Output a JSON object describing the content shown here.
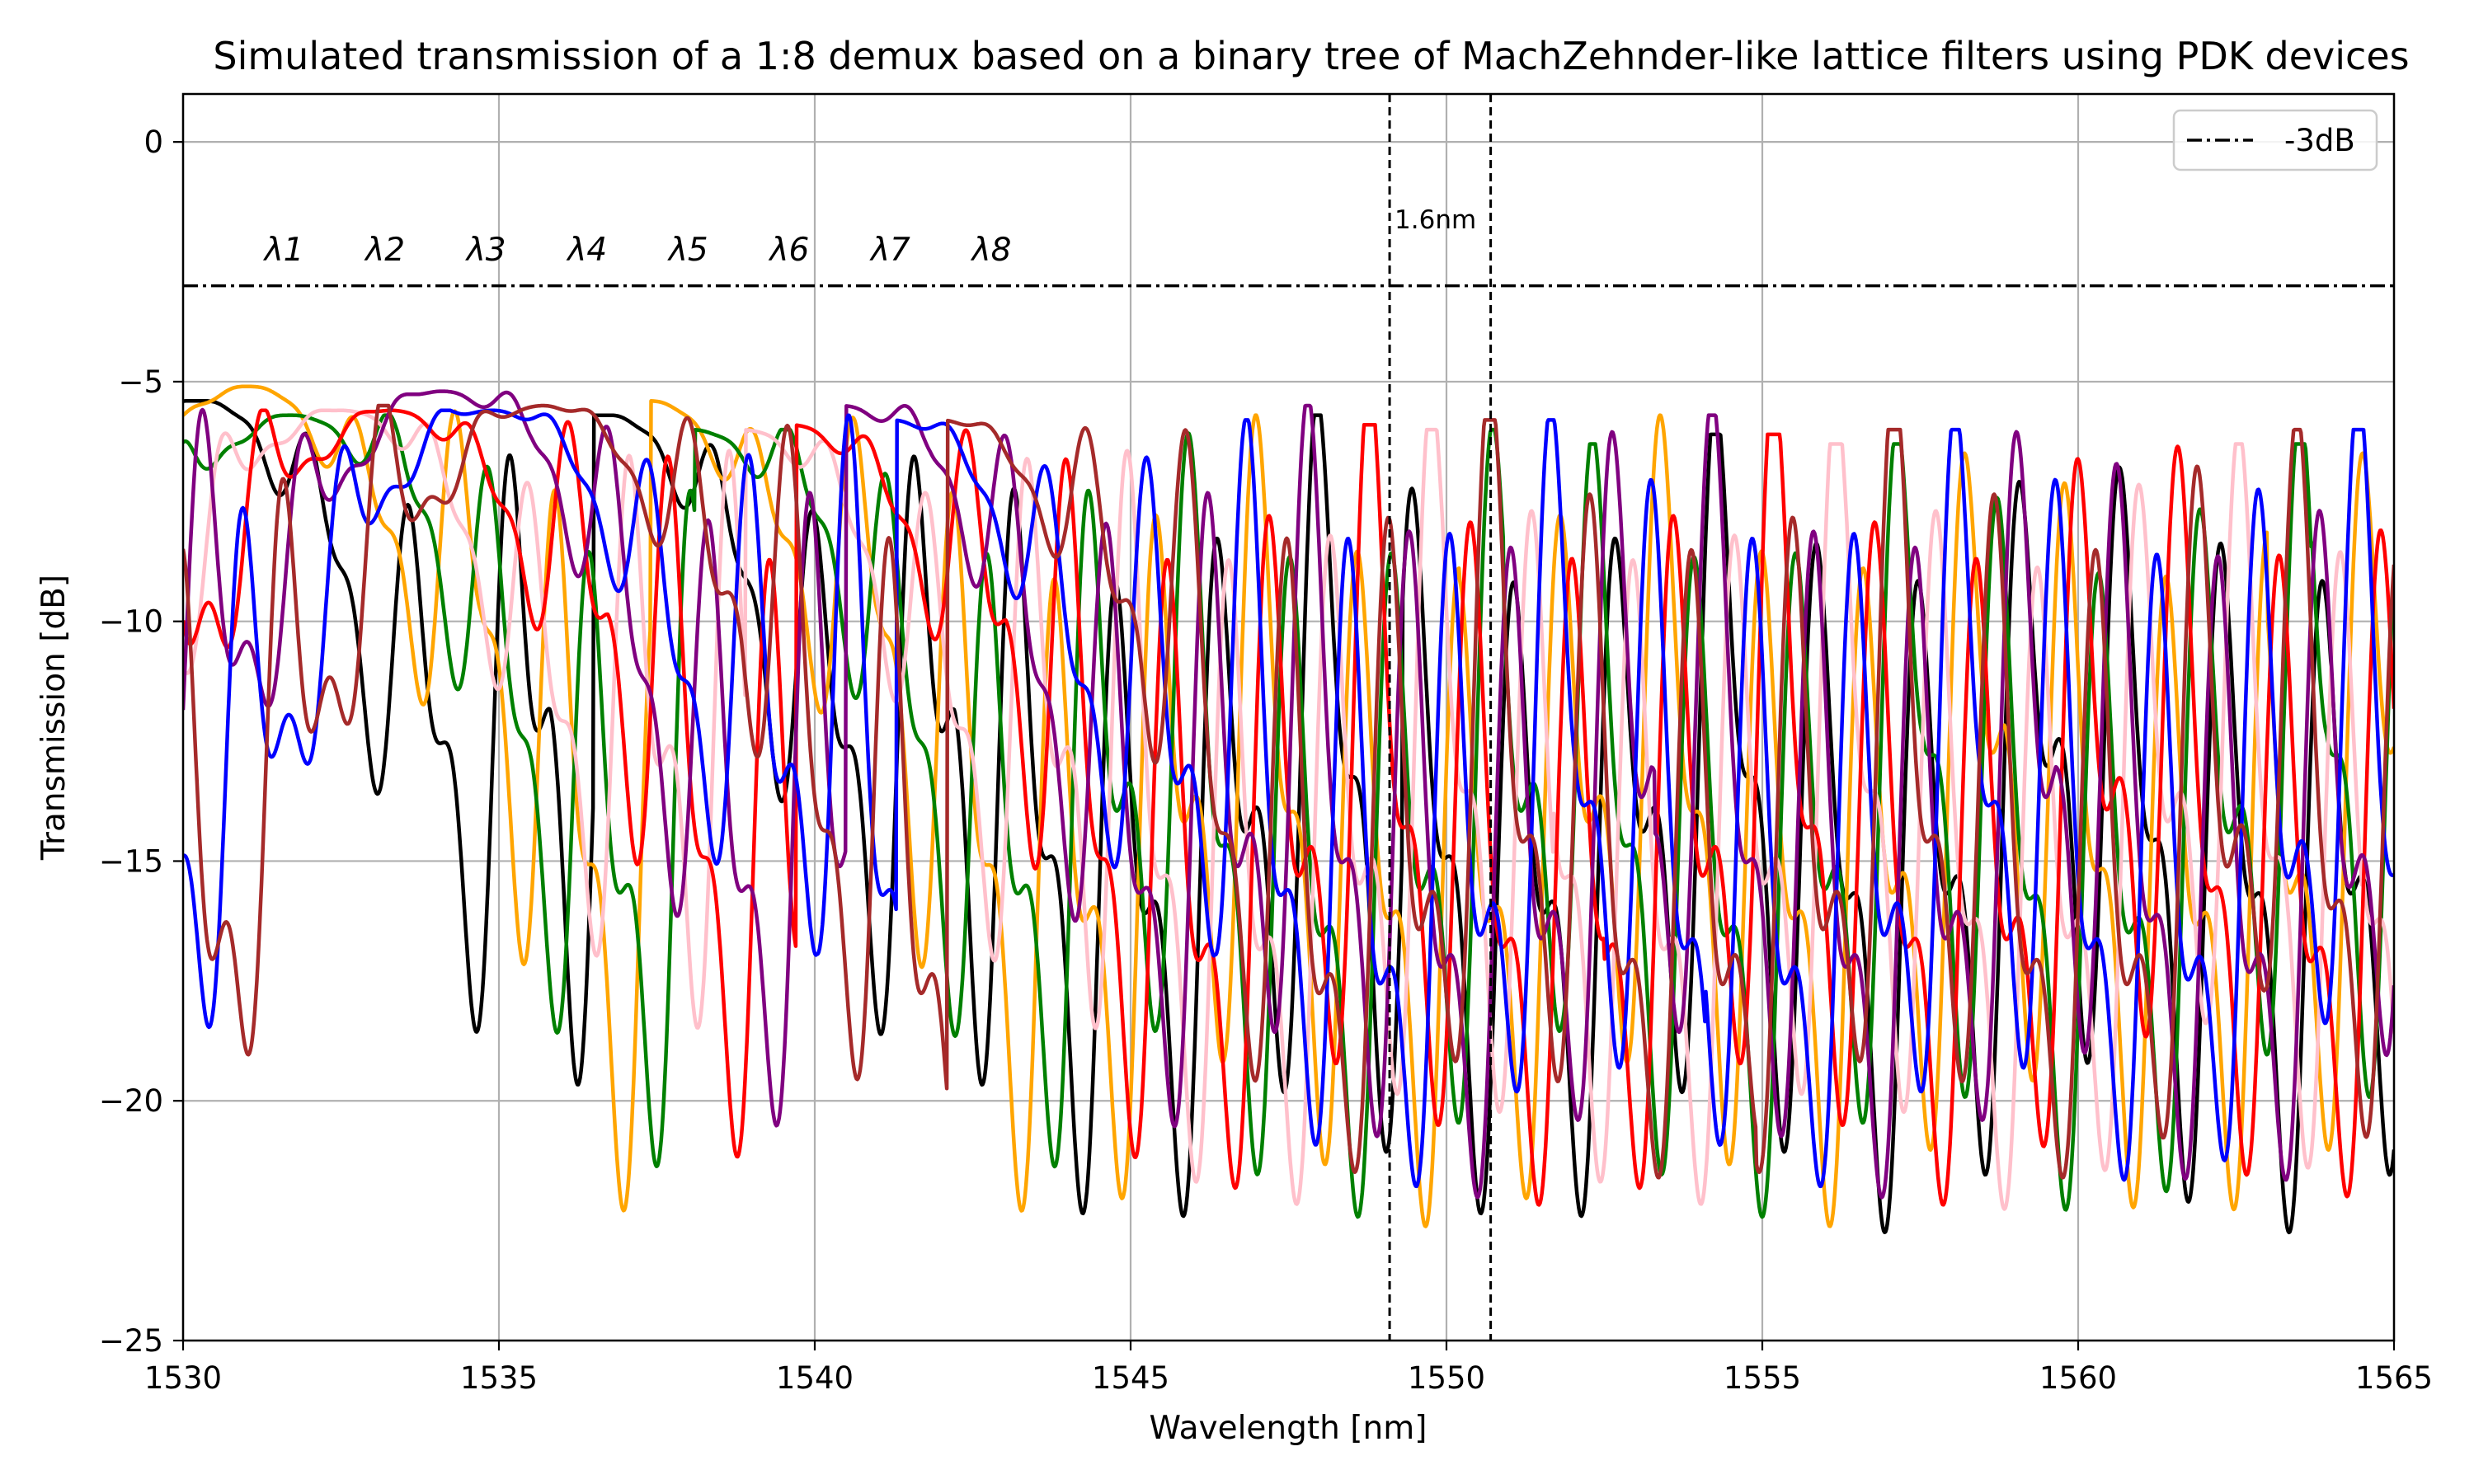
{
  "chart_data": {
    "type": "line",
    "title": "Simulated transmission of a 1:8 demux based on a binary tree of MachZehnder-like lattice filters using PDK devices",
    "xlabel": "Wavelength [nm]",
    "ylabel": "Transmission [dB]",
    "xlim": [
      1530,
      1565
    ],
    "ylim": [
      -25,
      1
    ],
    "xticks": [
      1530,
      1535,
      1540,
      1545,
      1550,
      1555,
      1560,
      1565
    ],
    "yticks": [
      0,
      -5,
      -10,
      -15,
      -20,
      -25
    ],
    "xtick_labels": [
      "1530",
      "1535",
      "1540",
      "1545",
      "1550",
      "1555",
      "1560",
      "1565"
    ],
    "ytick_labels": [
      "0",
      "−5",
      "−10",
      "−15",
      "−20",
      "−25"
    ],
    "grid": true,
    "legend": {
      "position": "top-right",
      "entries": [
        {
          "label": "-3dB",
          "style": "dash-dot",
          "color": "#000000"
        }
      ]
    },
    "reference_line": {
      "y": -3,
      "label": "-3dB"
    },
    "channel_spacing_nm": 1.6,
    "annotations": {
      "spacing_label": "1.6nm",
      "marker_lines_x": [
        1549.1,
        1550.7
      ],
      "channel_labels": [
        "λ1",
        "λ2",
        "λ3",
        "λ4",
        "λ5",
        "λ6",
        "λ7",
        "λ8"
      ],
      "channel_label_x": [
        1531.6,
        1533.2,
        1534.8,
        1536.4,
        1538.0,
        1539.6,
        1541.2,
        1542.8
      ],
      "channel_label_y": -2.3
    },
    "series": [
      {
        "color": "#000000",
        "peak_centers": [
          1530.1,
          1536.5,
          1542.8,
          1549.2,
          1555.5,
          1562.0
        ],
        "peak_levels": [
          -5.4,
          -5.7,
          -6.1,
          -6.5,
          -6.9,
          -7.2
        ]
      },
      {
        "color": "#ffa500",
        "peak_centers": [
          1531.0,
          1537.3,
          1543.7,
          1550.0,
          1556.4,
          1562.8
        ],
        "peak_levels": [
          -5.1,
          -5.4,
          -5.7,
          -5.9,
          -6.1,
          -6.2
        ]
      },
      {
        "color": "#008000",
        "peak_centers": [
          1531.7,
          1538.0,
          1544.4,
          1550.8,
          1557.1,
          1563.6
        ],
        "peak_levels": [
          -5.7,
          -6.0,
          -6.3,
          -6.5,
          -6.7,
          -6.9
        ]
      },
      {
        "color": "#ffc0cb",
        "peak_centers": [
          1532.5,
          1538.8,
          1545.2,
          1551.6,
          1557.9,
          1564.4
        ],
        "peak_levels": [
          -5.6,
          -6.0,
          -6.3,
          -6.7,
          -7.0,
          -7.3
        ]
      },
      {
        "color": "#ff0000",
        "peak_centers": [
          1533.3,
          1539.6,
          1546.0,
          1552.4,
          1558.8
        ],
        "peak_levels": [
          -5.6,
          -5.9,
          -6.1,
          -6.4,
          -6.6
        ]
      },
      {
        "color": "#800080",
        "peak_centers": [
          1534.1,
          1540.4,
          1546.8,
          1553.2,
          1559.6
        ],
        "peak_levels": [
          -5.2,
          -5.5,
          -5.7,
          -5.8,
          -5.8
        ]
      },
      {
        "color": "#0000ff",
        "peak_centers": [
          1534.9,
          1541.2,
          1547.6,
          1554.0,
          1560.4
        ],
        "peak_levels": [
          -5.6,
          -5.8,
          -6.0,
          -6.1,
          -6.2
        ]
      },
      {
        "color": "#a52a2a",
        "peak_centers": [
          1535.7,
          1542.0,
          1548.4,
          1554.8,
          1561.2
        ],
        "peak_levels": [
          -5.5,
          -5.8,
          -6.0,
          -6.2,
          -6.4
        ]
      }
    ]
  }
}
